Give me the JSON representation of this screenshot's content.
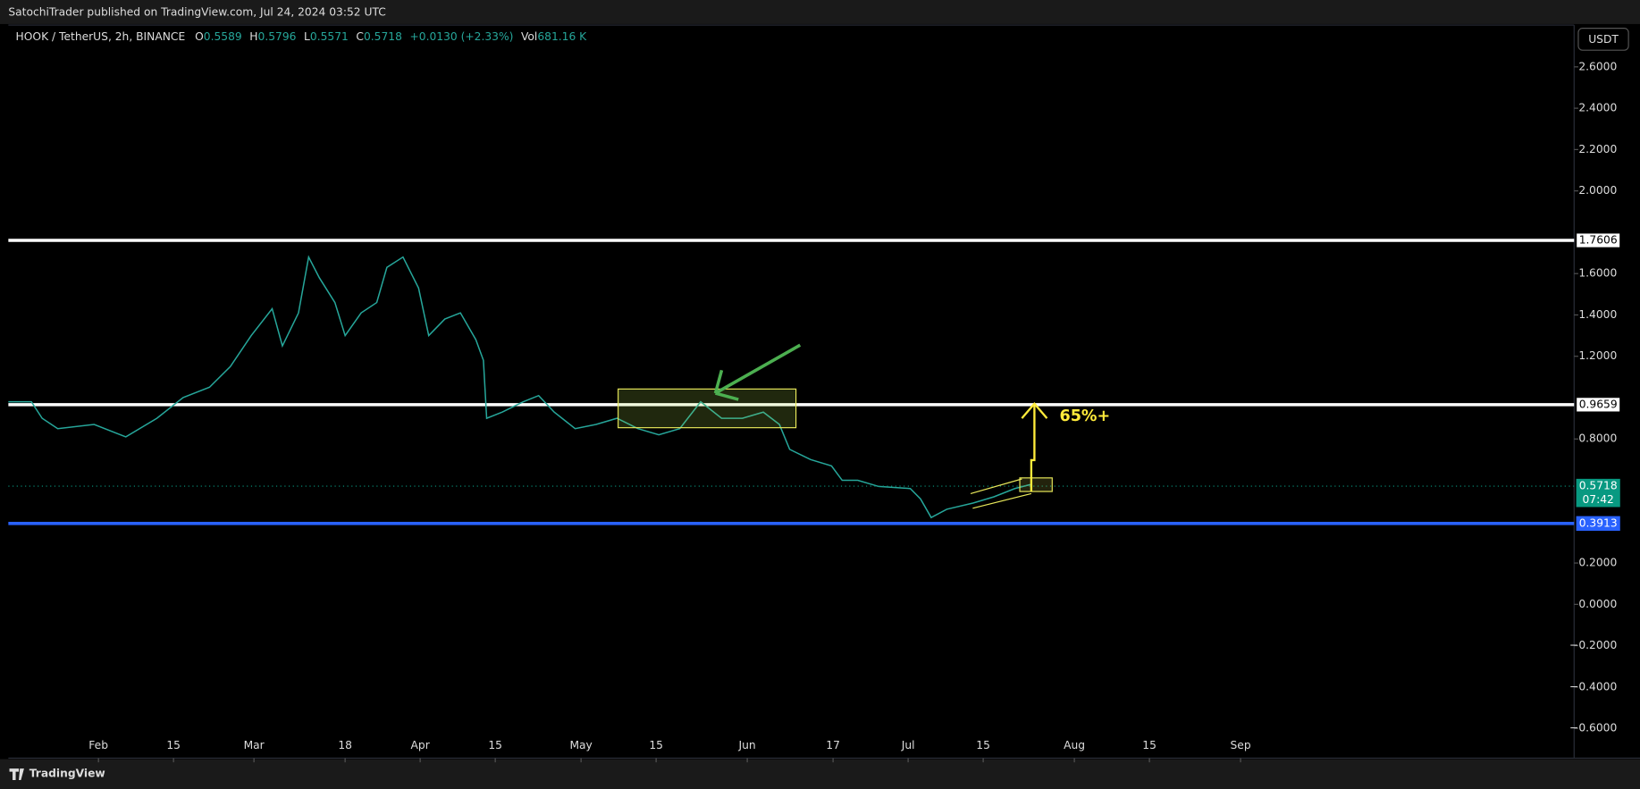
{
  "header": {
    "publisher": "SatochiTrader published on TradingView.com, Jul 24, 2024 03:52 UTC",
    "currency_button": "USDT",
    "footer": "TradingView"
  },
  "legend": {
    "symbol": "HOOK / TetherUS, 2h, BINANCE",
    "open_label": "O",
    "open": "0.5589",
    "high_label": "H",
    "high": "0.5796",
    "low_label": "L",
    "low": "0.5571",
    "close_label": "C",
    "close": "0.5718",
    "change": "+0.0130 (+2.33%)",
    "volume_label": "Vol",
    "volume": "681.16 K"
  },
  "chart_data": {
    "type": "line",
    "x": [
      14.2,
      18.5,
      20.5,
      23.4,
      30.2,
      36.1,
      41.9,
      46.8,
      51.7,
      55.6,
      59.5,
      63.4,
      65.3,
      68.3,
      70.2,
      72.2,
      75.1,
      77.0,
      80.0,
      82.9,
      84.8,
      87.8,
      90.7,
      92.6,
      95.6,
      98.5,
      101.4,
      102.8,
      103.4,
      106.3,
      110.2,
      113.1,
      116.0,
      119.9,
      123.8,
      127.7,
      131.6,
      135.5,
      139.4,
      143.3,
      147.2,
      151.1,
      155.0,
      158.0,
      159.9,
      163.8,
      167.7,
      169.7,
      172.6,
      176.5,
      182.4,
      184.3,
      186.3,
      189.2,
      194.1,
      198.0,
      201.9,
      204.8
    ],
    "series": [
      {
        "color": "#26a69a",
        "values": [
          0.98,
          0.98,
          0.9,
          0.85,
          0.87,
          0.81,
          0.9,
          1.0,
          1.05,
          1.15,
          1.3,
          1.43,
          1.25,
          1.41,
          1.68,
          1.58,
          1.46,
          1.3,
          1.41,
          1.46,
          1.63,
          1.68,
          1.53,
          1.3,
          1.38,
          1.41,
          1.28,
          1.18,
          0.9,
          0.93,
          0.98,
          1.01,
          0.93,
          0.85,
          0.87,
          0.9,
          0.85,
          0.82,
          0.85,
          0.98,
          0.9,
          0.9,
          0.93,
          0.87,
          0.75,
          0.7,
          0.67,
          0.6,
          0.6,
          0.57,
          0.56,
          0.51,
          0.42,
          0.46,
          0.49,
          0.52,
          0.56,
          0.58
        ]
      }
    ],
    "xlim": [
      14.2,
      306.2
    ],
    "xticks": [
      {
        "value": 31,
        "label": "Feb"
      },
      {
        "value": 45,
        "label": "15"
      },
      {
        "value": 60,
        "label": "Mar"
      },
      {
        "value": 77,
        "label": "18"
      },
      {
        "value": 91,
        "label": "Apr"
      },
      {
        "value": 105,
        "label": "15"
      },
      {
        "value": 121,
        "label": "May"
      },
      {
        "value": 135,
        "label": "15"
      },
      {
        "value": 152,
        "label": "Jun"
      },
      {
        "value": 168,
        "label": "17"
      },
      {
        "value": 182,
        "label": "Jul"
      },
      {
        "value": 196,
        "label": "15"
      },
      {
        "value": 213,
        "label": "Aug"
      },
      {
        "value": 227,
        "label": "15"
      },
      {
        "value": 244,
        "label": "Sep"
      }
    ],
    "ylim": [
      -0.744,
      2.802
    ],
    "yticks": [
      {
        "value": 2.6,
        "label": "2.6000"
      },
      {
        "value": 2.4,
        "label": "2.4000"
      },
      {
        "value": 2.2,
        "label": "2.2000"
      },
      {
        "value": 2.0,
        "label": "2.0000"
      },
      {
        "value": 1.6,
        "label": "1.6000"
      },
      {
        "value": 1.4,
        "label": "1.4000"
      },
      {
        "value": 1.2,
        "label": "1.2000"
      },
      {
        "value": 0.8,
        "label": "0.8000"
      },
      {
        "value": 0.2,
        "label": "0.2000"
      },
      {
        "value": 0,
        "label": "0.0000"
      },
      {
        "value": -0.2,
        "label": "−0.2000"
      },
      {
        "value": -0.4,
        "label": "−0.4000"
      },
      {
        "value": -0.6,
        "label": "−0.6000"
      }
    ],
    "levels": [
      {
        "value": 1.7606,
        "color": "#ffffff"
      },
      {
        "value": 0.9659,
        "color": "#ffffff"
      },
      {
        "value": 0.3913,
        "color": "#2962ff"
      }
    ],
    "last_price": {
      "value": 0.5718,
      "countdown": "07:42",
      "color": "#089981"
    },
    "annotation": "65%+"
  }
}
